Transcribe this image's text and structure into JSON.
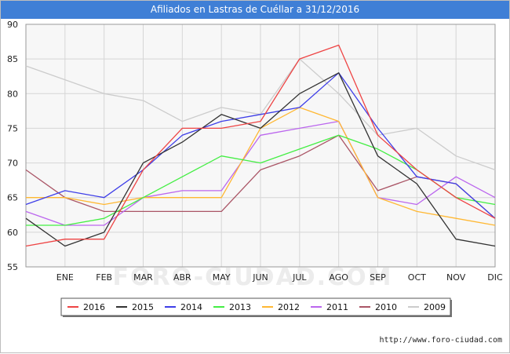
{
  "header": {
    "title": "Afiliados en Lastras de Cuéllar a 31/12/2016"
  },
  "footer": {
    "url": "http://www.foro-ciudad.com"
  },
  "watermark": "FORO-CIUDAD.COM",
  "chart_data": {
    "type": "line",
    "title": "Afiliados en Lastras de Cuéllar a 31/12/2016",
    "xlabel": "",
    "ylabel": "",
    "categories": [
      "DIC",
      "ENE",
      "FEB",
      "MAR",
      "ABR",
      "MAY",
      "JUN",
      "JUL",
      "AGO",
      "SEP",
      "OCT",
      "NOV",
      "DIC"
    ],
    "x_tick_labels": [
      "ENE",
      "FEB",
      "MAR",
      "ABR",
      "MAY",
      "JUN",
      "JUL",
      "AGO",
      "SEP",
      "OCT",
      "NOV",
      "DIC"
    ],
    "ylim": [
      55,
      90
    ],
    "yticks": [
      55,
      60,
      65,
      70,
      75,
      80,
      85,
      90
    ],
    "grid": true,
    "legend_position": "bottom",
    "series": [
      {
        "name": "2016",
        "color": "#ee4444",
        "values": [
          58,
          59,
          59,
          69,
          75,
          75,
          76,
          85,
          87,
          74,
          69,
          65,
          62
        ]
      },
      {
        "name": "2015",
        "color": "#333333",
        "values": [
          62,
          58,
          60,
          70,
          73,
          77,
          75,
          80,
          83,
          71,
          67,
          59,
          58
        ]
      },
      {
        "name": "2014",
        "color": "#3e3ee8",
        "values": [
          64,
          66,
          65,
          69,
          74,
          76,
          77,
          78,
          83,
          75,
          68,
          67,
          62
        ]
      },
      {
        "name": "2013",
        "color": "#44ee44",
        "values": [
          61,
          61,
          62,
          65,
          68,
          71,
          70,
          72,
          74,
          72,
          69,
          65,
          64
        ]
      },
      {
        "name": "2012",
        "color": "#ffb833",
        "values": [
          65,
          65,
          64,
          65,
          65,
          65,
          75,
          78,
          76,
          65,
          63,
          62,
          61
        ]
      },
      {
        "name": "2011",
        "color": "#bb66ee",
        "values": [
          63,
          61,
          61,
          65,
          66,
          66,
          74,
          75,
          76,
          65,
          64,
          68,
          65
        ]
      },
      {
        "name": "2010",
        "color": "#aa5566",
        "values": [
          69,
          65,
          63,
          63,
          63,
          63,
          69,
          71,
          74,
          66,
          68,
          67,
          62
        ]
      },
      {
        "name": "2009",
        "color": "#cccccc",
        "values": [
          84,
          82,
          80,
          79,
          76,
          78,
          77,
          85,
          80,
          74,
          75,
          71,
          69
        ]
      }
    ]
  }
}
